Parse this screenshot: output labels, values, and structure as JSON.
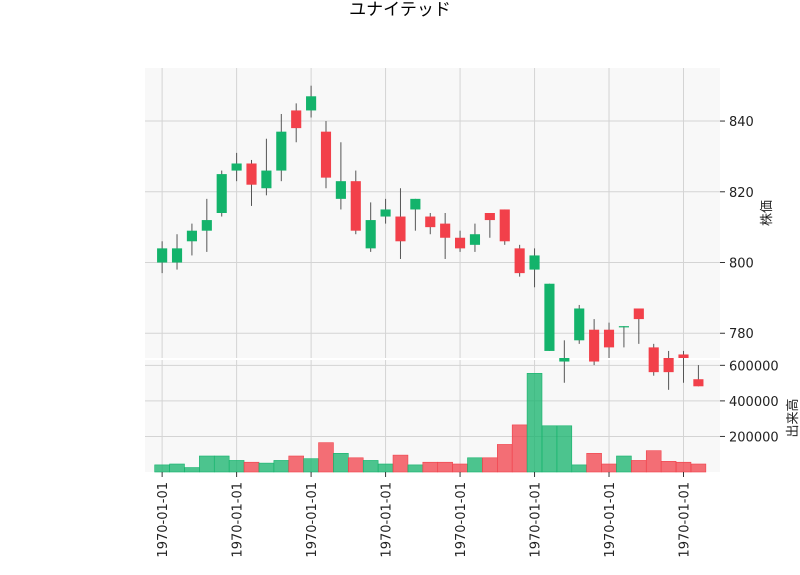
{
  "chart_data": {
    "type": "candlestick",
    "title": "ユナイテッド",
    "price_ylabel": "株価",
    "volume_ylabel": "出来高",
    "price_ylim": [
      773,
      855
    ],
    "volume_ylim": [
      0,
      630000
    ],
    "price_ticks": [
      780,
      800,
      820,
      840
    ],
    "volume_ticks": [
      200000,
      400000,
      600000
    ],
    "x_tick_positions": [
      0,
      5,
      10,
      15,
      20,
      25,
      30,
      35
    ],
    "x_tick_label": "1970-01-01",
    "grid": true,
    "colors": {
      "up": "#13b36b",
      "down": "#f2404a",
      "wick": "#555555",
      "grid": "#d4d4d4",
      "panel": "#f8f8f8"
    },
    "candles": [
      {
        "open": 800,
        "close": 804,
        "high": 806,
        "low": 797,
        "volume": 40000
      },
      {
        "open": 800,
        "close": 804,
        "high": 808,
        "low": 798,
        "volume": 45000
      },
      {
        "open": 806,
        "close": 809,
        "high": 811,
        "low": 802,
        "volume": 25000
      },
      {
        "open": 809,
        "close": 812,
        "high": 818,
        "low": 803,
        "volume": 90000
      },
      {
        "open": 814,
        "close": 825,
        "high": 826,
        "low": 813,
        "volume": 90000
      },
      {
        "open": 826,
        "close": 828,
        "high": 831,
        "low": 823,
        "volume": 65000
      },
      {
        "open": 828,
        "close": 822,
        "high": 829,
        "low": 816,
        "volume": 55000
      },
      {
        "open": 821,
        "close": 826,
        "high": 835,
        "low": 819,
        "volume": 50000
      },
      {
        "open": 826,
        "close": 837,
        "high": 842,
        "low": 823,
        "volume": 65000
      },
      {
        "open": 843,
        "close": 838,
        "high": 845,
        "low": 834,
        "volume": 90000
      },
      {
        "open": 843,
        "close": 847,
        "high": 850,
        "low": 841,
        "volume": 75000
      },
      {
        "open": 837,
        "close": 824,
        "high": 840,
        "low": 821,
        "volume": 165000
      },
      {
        "open": 818,
        "close": 823,
        "high": 834,
        "low": 815,
        "volume": 105000
      },
      {
        "open": 823,
        "close": 809,
        "high": 826,
        "low": 808,
        "volume": 80000
      },
      {
        "open": 804,
        "close": 812,
        "high": 817,
        "low": 803,
        "volume": 65000
      },
      {
        "open": 813,
        "close": 815,
        "high": 818,
        "low": 811,
        "volume": 45000
      },
      {
        "open": 813,
        "close": 806,
        "high": 821,
        "low": 801,
        "volume": 95000
      },
      {
        "open": 815,
        "close": 818,
        "high": 818,
        "low": 809,
        "volume": 40000
      },
      {
        "open": 813,
        "close": 810,
        "high": 814,
        "low": 808,
        "volume": 55000
      },
      {
        "open": 811,
        "close": 807,
        "high": 814,
        "low": 801,
        "volume": 55000
      },
      {
        "open": 807,
        "close": 804,
        "high": 809,
        "low": 803,
        "volume": 45000
      },
      {
        "open": 805,
        "close": 808,
        "high": 811,
        "low": 803,
        "volume": 80000
      },
      {
        "open": 814,
        "close": 812,
        "high": 814,
        "low": 807,
        "volume": 80000
      },
      {
        "open": 815,
        "close": 806,
        "high": 815,
        "low": 805,
        "volume": 155000
      },
      {
        "open": 804,
        "close": 797,
        "high": 805,
        "low": 796,
        "volume": 265000
      },
      {
        "open": 798,
        "close": 802,
        "high": 804,
        "low": 793,
        "volume": 555000
      },
      {
        "open": 775,
        "close": 794,
        "high": 794,
        "low": 775,
        "volume": 260000
      },
      {
        "open": 772,
        "close": 773,
        "high": 778,
        "low": 766,
        "volume": 260000
      },
      {
        "open": 778,
        "close": 787,
        "high": 788,
        "low": 777,
        "volume": 40000
      },
      {
        "open": 781,
        "close": 772,
        "high": 784,
        "low": 771,
        "volume": 105000
      },
      {
        "open": 781,
        "close": 776,
        "high": 783,
        "low": 773,
        "volume": 45000
      },
      {
        "open": 782,
        "close": 782,
        "high": 782,
        "low": 776,
        "volume": 90000
      },
      {
        "open": 787,
        "close": 784,
        "high": 787,
        "low": 777,
        "volume": 65000
      },
      {
        "open": 776,
        "close": 769,
        "high": 777,
        "low": 768,
        "volume": 120000
      },
      {
        "open": 773,
        "close": 769,
        "high": 775,
        "low": 764,
        "volume": 60000
      },
      {
        "open": 774,
        "close": 773,
        "high": 775,
        "low": 766,
        "volume": 55000
      },
      {
        "open": 767,
        "close": 765,
        "high": 771,
        "low": 765,
        "volume": 45000
      }
    ]
  }
}
